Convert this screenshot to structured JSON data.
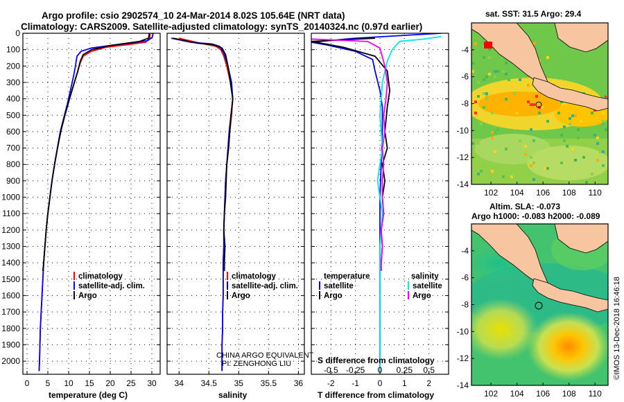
{
  "title_line1": "Argo profile: csio 2902574_10 24-Mar-2014 8.02S 105.64E (NRT data)",
  "title_line2": "Climatology: CARS2009. Satellite-adjusted climatology: synTS_20140324.nc (0.97d earlier)",
  "credit": "CHINA ARGO EQUIVALENT",
  "pi": "PI: ZENGHONG LIU",
  "timestamp": "©IMOS 13-Dec-2018 16:46:18",
  "legend1": [
    "climatology",
    "satellite-adj. clim.",
    "Argo"
  ],
  "legend3_heads": [
    "temperature",
    "salinity"
  ],
  "legend3_items": [
    "satellite",
    "Argo",
    "satellite",
    "Argo"
  ],
  "colors": {
    "clim": "#ff0000",
    "sat": "#0000ff",
    "argo": "#000000",
    "sal_sat": "#00e5ee",
    "sal_argo": "#ee00ee",
    "land": "#f7c59f"
  },
  "chart_data": [
    {
      "type": "line",
      "xlabel": "temperature (deg C)",
      "xlim": [
        -1,
        32
      ],
      "ylim": [
        0,
        2080
      ],
      "xticks": [
        0,
        5,
        10,
        15,
        20,
        25,
        30
      ],
      "yticks": [
        0,
        100,
        200,
        300,
        400,
        500,
        600,
        700,
        800,
        900,
        1000,
        1100,
        1200,
        1300,
        1400,
        1500,
        1600,
        1700,
        1800,
        1900,
        2000
      ],
      "series": [
        {
          "name": "climatology",
          "color": "#ff0000",
          "points": [
            [
              29.6,
              0
            ],
            [
              29.5,
              30
            ],
            [
              28.5,
              55
            ],
            [
              24,
              70
            ],
            [
              19,
              85
            ],
            [
              15.5,
              110
            ],
            [
              13.5,
              140
            ],
            [
              12.8,
              180
            ],
            [
              12,
              250
            ],
            [
              10.8,
              350
            ],
            [
              9.8,
              430
            ],
            [
              8.8,
              520
            ],
            [
              8,
              600
            ],
            [
              7.3,
              700
            ],
            [
              6.6,
              800
            ],
            [
              6,
              900
            ],
            [
              5.5,
              1000
            ],
            [
              5,
              1100
            ],
            [
              4.6,
              1200
            ],
            [
              4.3,
              1300
            ],
            [
              4,
              1400
            ],
            [
              3.8,
              1500
            ],
            [
              3.6,
              1600
            ],
            [
              3.4,
              1700
            ],
            [
              3.2,
              1800
            ],
            [
              3.1,
              1900
            ],
            [
              3,
              2000
            ],
            [
              2.9,
              2060
            ]
          ]
        },
        {
          "name": "satellite-adj. clim.",
          "color": "#0000ff",
          "points": [
            [
              30.3,
              0
            ],
            [
              30.1,
              25
            ],
            [
              29,
              45
            ],
            [
              25,
              60
            ],
            [
              20,
              75
            ],
            [
              15.5,
              90
            ],
            [
              13,
              110
            ],
            [
              12,
              140
            ],
            [
              11.7,
              190
            ],
            [
              11.2,
              260
            ],
            [
              10.5,
              340
            ],
            [
              9.7,
              430
            ],
            [
              8.8,
              520
            ],
            [
              8,
              600
            ],
            [
              7.3,
              700
            ],
            [
              6.6,
              800
            ],
            [
              6,
              900
            ],
            [
              5.5,
              1000
            ],
            [
              5,
              1100
            ],
            [
              4.6,
              1200
            ],
            [
              4.3,
              1300
            ],
            [
              4,
              1400
            ],
            [
              3.8,
              1500
            ],
            [
              3.6,
              1600
            ],
            [
              3.4,
              1700
            ],
            [
              3.2,
              1800
            ],
            [
              3.1,
              1900
            ],
            [
              3,
              2000
            ],
            [
              2.9,
              2060
            ]
          ]
        },
        {
          "name": "Argo",
          "color": "#000000",
          "points": [
            [
              29.4,
              0
            ],
            [
              29.2,
              30
            ],
            [
              27,
              50
            ],
            [
              20,
              75
            ],
            [
              15.5,
              100
            ],
            [
              13.5,
              130
            ],
            [
              12.8,
              170
            ],
            [
              12.2,
              230
            ],
            [
              11,
              330
            ],
            [
              10,
              420
            ],
            [
              9,
              510
            ],
            [
              8.2,
              590
            ],
            [
              7.4,
              690
            ],
            [
              6.7,
              790
            ],
            [
              6,
              900
            ],
            [
              5.5,
              1000
            ],
            [
              5,
              1100
            ],
            [
              4.6,
              1200
            ],
            [
              4.3,
              1300
            ],
            [
              4,
              1400
            ],
            [
              3.8,
              1450
            ]
          ]
        }
      ]
    },
    {
      "type": "line",
      "xlabel": "salinity",
      "xlim": [
        33.8,
        36.1
      ],
      "ylim": [
        0,
        2080
      ],
      "xticks": [
        34,
        34.5,
        35,
        35.5,
        36
      ],
      "series": [
        {
          "name": "climatology",
          "color": "#ff0000",
          "points": [
            [
              34.0,
              30
            ],
            [
              34.35,
              60
            ],
            [
              34.62,
              80
            ],
            [
              34.7,
              100
            ],
            [
              34.75,
              140
            ],
            [
              34.8,
              200
            ],
            [
              34.86,
              300
            ],
            [
              34.9,
              400
            ],
            [
              34.88,
              500
            ],
            [
              34.85,
              600
            ],
            [
              34.83,
              700
            ],
            [
              34.8,
              800
            ],
            [
              34.78,
              900
            ],
            [
              34.77,
              1000
            ],
            [
              34.76,
              1100
            ],
            [
              34.75,
              1200
            ],
            [
              34.75,
              1300
            ],
            [
              34.74,
              1400
            ],
            [
              34.74,
              1500
            ],
            [
              34.74,
              1600
            ],
            [
              34.73,
              1700
            ],
            [
              34.73,
              1800
            ],
            [
              34.72,
              1900
            ],
            [
              34.72,
              2000
            ],
            [
              34.72,
              2060
            ]
          ]
        },
        {
          "name": "satellite-adj. clim.",
          "color": "#0000ff",
          "points": [
            [
              33.87,
              30
            ],
            [
              34.2,
              55
            ],
            [
              34.55,
              65
            ],
            [
              34.68,
              80
            ],
            [
              34.75,
              120
            ],
            [
              34.82,
              200
            ],
            [
              34.88,
              300
            ],
            [
              34.9,
              400
            ],
            [
              34.87,
              500
            ],
            [
              34.84,
              600
            ],
            [
              34.82,
              700
            ],
            [
              34.8,
              800
            ],
            [
              34.78,
              900
            ],
            [
              34.77,
              1000
            ],
            [
              34.76,
              1100
            ],
            [
              34.75,
              1200
            ],
            [
              34.75,
              1300
            ],
            [
              34.74,
              1400
            ],
            [
              34.74,
              1500
            ],
            [
              34.74,
              1600
            ],
            [
              34.73,
              1700
            ],
            [
              34.73,
              1800
            ],
            [
              34.72,
              1900
            ],
            [
              34.72,
              2000
            ],
            [
              34.72,
              2060
            ]
          ]
        },
        {
          "name": "Argo",
          "color": "#000000",
          "points": [
            [
              33.9,
              30
            ],
            [
              34.3,
              60
            ],
            [
              34.58,
              70
            ],
            [
              34.72,
              90
            ],
            [
              34.78,
              130
            ],
            [
              34.82,
              200
            ],
            [
              34.86,
              300
            ],
            [
              34.9,
              400
            ],
            [
              34.87,
              500
            ],
            [
              34.85,
              600
            ],
            [
              34.83,
              700
            ],
            [
              34.8,
              800
            ],
            [
              34.79,
              900
            ],
            [
              34.78,
              1000
            ],
            [
              34.76,
              1100
            ],
            [
              34.75,
              1200
            ],
            [
              34.77,
              1300
            ],
            [
              34.76,
              1400
            ],
            [
              34.76,
              1450
            ]
          ]
        }
      ]
    },
    {
      "type": "line",
      "xlabel": "T difference from climatology",
      "xlabel_top": "S difference from climatology",
      "xlim": [
        -2.8,
        2.8
      ],
      "ylim": [
        0,
        2080
      ],
      "xticks": [
        -2,
        -1,
        0,
        1,
        2
      ],
      "xticklabels_top": [
        "-0.5",
        "-0.25",
        "0",
        "0.25",
        "0.5"
      ],
      "series": [
        {
          "name": "temperature satellite",
          "color": "#0000ff",
          "points": [
            [
              2.5,
              0
            ],
            [
              -1,
              30
            ],
            [
              -2.8,
              55
            ],
            [
              -2.2,
              70
            ],
            [
              -1,
              110
            ],
            [
              -0.3,
              160
            ],
            [
              -0.2,
              230
            ],
            [
              0,
              350
            ],
            [
              0.1,
              450
            ],
            [
              0.1,
              600
            ],
            [
              0.05,
              800
            ],
            [
              0,
              1000
            ],
            [
              0,
              1200
            ],
            [
              0,
              1400
            ],
            [
              0,
              1600
            ],
            [
              0,
              1800
            ],
            [
              0,
              2060
            ]
          ]
        },
        {
          "name": "temperature Argo",
          "color": "#000000",
          "points": [
            [
              -0.2,
              30
            ],
            [
              -2.8,
              50
            ],
            [
              -1.5,
              85
            ],
            [
              -0.2,
              140
            ],
            [
              0.3,
              230
            ],
            [
              0.4,
              350
            ],
            [
              0.3,
              450
            ],
            [
              0.2,
              600
            ],
            [
              0.3,
              700
            ],
            [
              0.1,
              800
            ],
            [
              0.2,
              900
            ],
            [
              0.1,
              1000
            ],
            [
              0.15,
              1100
            ],
            [
              0.05,
              1200
            ],
            [
              0.1,
              1300
            ],
            [
              0.05,
              1400
            ],
            [
              0.05,
              1450
            ]
          ]
        },
        {
          "name": "salinity satellite",
          "color": "#00e5ee",
          "points": [
            [
              2.5,
              20
            ],
            [
              1.8,
              35
            ],
            [
              0.8,
              50
            ],
            [
              0.5,
              100
            ],
            [
              0.3,
              170
            ],
            [
              0.1,
              300
            ],
            [
              0,
              500
            ],
            [
              0.1,
              700
            ],
            [
              -0.1,
              900
            ],
            [
              0.1,
              1100
            ],
            [
              0,
              1300
            ],
            [
              0,
              1500
            ],
            [
              0,
              1700
            ],
            [
              0,
              1900
            ],
            [
              0,
              2060
            ]
          ]
        },
        {
          "name": "salinity Argo",
          "color": "#ee00ee",
          "points": [
            [
              -2.8,
              35
            ],
            [
              -0.5,
              50
            ],
            [
              0,
              90
            ],
            [
              0.2,
              200
            ],
            [
              0.3,
              300
            ],
            [
              0.25,
              400
            ],
            [
              0.15,
              500
            ],
            [
              0.2,
              600
            ],
            [
              0.1,
              700
            ],
            [
              0.15,
              800
            ],
            [
              0.1,
              900
            ],
            [
              0.1,
              1000
            ],
            [
              0.15,
              1100
            ],
            [
              0.05,
              1200
            ],
            [
              0.1,
              1300
            ],
            [
              0.05,
              1400
            ],
            [
              0.05,
              1450
            ]
          ]
        }
      ]
    },
    {
      "type": "heatmap",
      "title": "sat. SST: 31.5 Argo: 29.4",
      "xlim": [
        100.5,
        111
      ],
      "ylim": [
        -14,
        -2
      ],
      "xticks": [
        102,
        104,
        106,
        108,
        110
      ],
      "yticks": [
        -4,
        -6,
        -8,
        -10,
        -12,
        -14
      ],
      "argo_position": [
        105.64,
        -8.02
      ]
    },
    {
      "type": "heatmap",
      "title": "Altim. SLA: -0.073",
      "subtitle": "Argo h1000: -0.083 h2000: -0.089",
      "xlim": [
        100.5,
        111
      ],
      "ylim": [
        -14,
        -2
      ],
      "xticks": [
        102,
        104,
        106,
        108,
        110
      ],
      "yticks": [
        -4,
        -6,
        -8,
        -10,
        -12,
        -14
      ],
      "argo_position": [
        105.64,
        -8.02
      ]
    }
  ]
}
